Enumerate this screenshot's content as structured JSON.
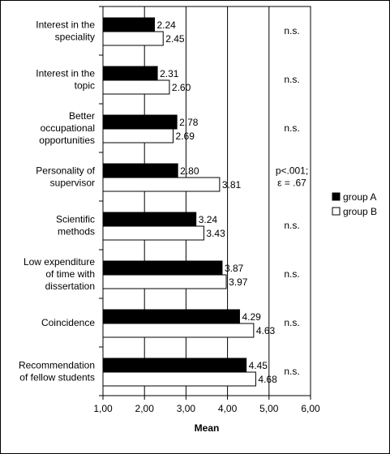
{
  "chart_data": {
    "type": "bar",
    "orientation": "horizontal",
    "categories": [
      [
        "Interest in the",
        "speciality"
      ],
      [
        "Interest in the",
        "topic"
      ],
      [
        "Better",
        "occupational",
        "opportunities"
      ],
      [
        "Personality of",
        "supervisor"
      ],
      [
        "Scientific",
        "methods"
      ],
      [
        "Low expenditure",
        "of time with",
        "dissertation"
      ],
      [
        "Coincidence"
      ],
      [
        "Recommendation",
        "of fellow students"
      ]
    ],
    "series": [
      {
        "name": "group A",
        "color": "#000000",
        "values": [
          2.24,
          2.31,
          2.78,
          2.8,
          3.24,
          3.87,
          4.29,
          4.45
        ],
        "labels": [
          "2.24",
          "2.31",
          "2.78",
          "2.80",
          "3.24",
          "3.87",
          "4.29",
          "4.45"
        ]
      },
      {
        "name": "group B",
        "color": "#ffffff",
        "values": [
          2.45,
          2.6,
          2.69,
          3.81,
          3.43,
          3.97,
          4.63,
          4.68
        ],
        "labels": [
          "2.45",
          "2.60",
          "2.69",
          "3.81",
          "3.43",
          "3.97",
          "4.63",
          "4.68"
        ]
      }
    ],
    "significance": [
      [
        "n.s."
      ],
      [
        "n.s."
      ],
      [
        "n.s."
      ],
      [
        "p<.001;",
        "ε = .67"
      ],
      [
        "n.s."
      ],
      [
        "n.s."
      ],
      [
        "n.s."
      ],
      [
        "n.s."
      ]
    ],
    "xlabel": "Mean",
    "xlim": [
      1,
      6
    ],
    "xticks": [
      "1,00",
      "2,00",
      "3,00",
      "4,00",
      "5,00",
      "6,00"
    ],
    "grid": "vertical",
    "legend": "right"
  }
}
